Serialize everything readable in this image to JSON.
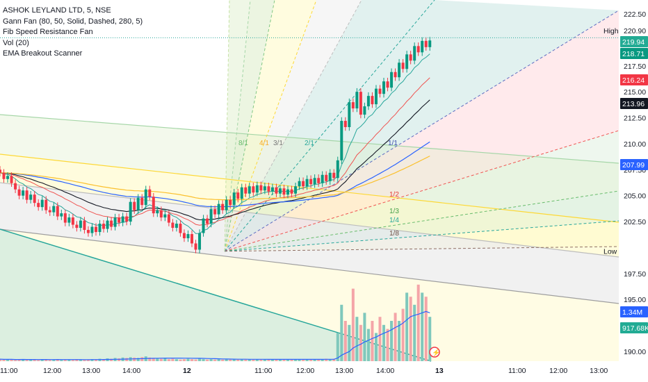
{
  "legend": {
    "title": "ASHOK LEYLAND LTD, 5, NSE",
    "indicators": [
      "Gann Fan (80, 50, Solid, Dashed, 280, 5)",
      "Fib Speed Resistance Fan",
      "Vol (20)",
      "EMA Breakout Scanner"
    ]
  },
  "chart_data": {
    "type": "candlestick",
    "symbol": "ASHOK LEYLAND LTD",
    "interval": "5",
    "exchange": "NSE",
    "ylim": [
      189.5,
      223.8
    ],
    "y_ticks": [
      "222.50",
      "220.90",
      "217.50",
      "215.00",
      "212.50",
      "210.00",
      "207.50",
      "205.00",
      "202.50",
      "197.50",
      "195.00",
      "190.00"
    ],
    "x_ticks": [
      "11:00",
      "12:00",
      "13:00",
      "14:00",
      "12",
      "11:00",
      "12:00",
      "13:00",
      "14:00",
      "13",
      "11:00",
      "12:00",
      "13:00"
    ],
    "price_labels": [
      {
        "text": "High",
        "value": 220.9
      },
      {
        "text": "Low",
        "value": 199.65
      }
    ],
    "badges": [
      {
        "text": "219.94",
        "color": "#22ab94"
      },
      {
        "text": "218.71",
        "color": "#089981"
      },
      {
        "text": "216.24",
        "color": "#f23645"
      },
      {
        "text": "213.96",
        "color": "#131722"
      },
      {
        "text": "207.99",
        "color": "#2962ff"
      },
      {
        "text": "1.34M",
        "color": "#2962ff"
      },
      {
        "text": "917.68K",
        "color": "#22ab94"
      }
    ],
    "fan_labels": [
      "8/1",
      "4/1",
      "3/1",
      "2/1",
      "1/1",
      "1/2",
      "1/3",
      "1/4",
      "1/8"
    ],
    "gann_fan": {
      "origin": {
        "time": "Day12 ~10:30",
        "price": 199.65
      },
      "ratios": [
        "8/1",
        "4/1",
        "3/1",
        "2/1",
        "1/1",
        "1/2",
        "1/3",
        "1/4",
        "1/8"
      ]
    },
    "candles": [
      {
        "o": 207.5,
        "c": 207.2
      },
      {
        "o": 207.2,
        "c": 206.6
      },
      {
        "o": 206.6,
        "c": 206.9
      },
      {
        "o": 206.9,
        "c": 206.2
      },
      {
        "o": 206.2,
        "c": 205.6
      },
      {
        "o": 205.6,
        "c": 205.0
      },
      {
        "o": 205.0,
        "c": 205.5
      },
      {
        "o": 205.5,
        "c": 204.6
      },
      {
        "o": 204.6,
        "c": 205.1
      },
      {
        "o": 205.1,
        "c": 204.3
      },
      {
        "o": 204.3,
        "c": 203.9
      },
      {
        "o": 203.9,
        "c": 204.6
      },
      {
        "o": 204.6,
        "c": 203.6
      },
      {
        "o": 203.6,
        "c": 203.4
      },
      {
        "o": 203.4,
        "c": 204.0
      },
      {
        "o": 204.0,
        "c": 203.0
      },
      {
        "o": 203.0,
        "c": 203.3
      },
      {
        "o": 203.3,
        "c": 202.4
      },
      {
        "o": 202.4,
        "c": 202.9
      },
      {
        "o": 202.9,
        "c": 202.2
      },
      {
        "o": 202.2,
        "c": 201.9
      },
      {
        "o": 201.9,
        "c": 202.6
      },
      {
        "o": 202.6,
        "c": 201.7
      },
      {
        "o": 201.7,
        "c": 201.4
      },
      {
        "o": 201.4,
        "c": 202.0
      },
      {
        "o": 202.0,
        "c": 201.5
      },
      {
        "o": 201.5,
        "c": 202.3
      },
      {
        "o": 202.3,
        "c": 201.8
      },
      {
        "o": 201.8,
        "c": 202.6
      },
      {
        "o": 202.6,
        "c": 202.0
      },
      {
        "o": 202.0,
        "c": 202.9
      },
      {
        "o": 202.9,
        "c": 202.4
      },
      {
        "o": 202.4,
        "c": 203.0
      },
      {
        "o": 203.0,
        "c": 202.5
      },
      {
        "o": 202.5,
        "c": 204.4
      },
      {
        "o": 204.4,
        "c": 203.6
      },
      {
        "o": 203.6,
        "c": 204.8
      },
      {
        "o": 204.8,
        "c": 204.1
      },
      {
        "o": 204.1,
        "c": 205.6
      },
      {
        "o": 205.6,
        "c": 204.9
      },
      {
        "o": 204.9,
        "c": 203.3
      },
      {
        "o": 203.3,
        "c": 203.6
      },
      {
        "o": 203.6,
        "c": 202.9
      },
      {
        "o": 202.9,
        "c": 203.2
      },
      {
        "o": 203.2,
        "c": 202.4
      },
      {
        "o": 202.4,
        "c": 201.9
      },
      {
        "o": 201.9,
        "c": 202.3
      },
      {
        "o": 202.3,
        "c": 201.4
      },
      {
        "o": 201.4,
        "c": 200.9
      },
      {
        "o": 200.9,
        "c": 201.3
      },
      {
        "o": 201.3,
        "c": 200.4
      },
      {
        "o": 200.4,
        "c": 199.8
      },
      {
        "o": 199.8,
        "c": 201.4
      },
      {
        "o": 201.4,
        "c": 202.8
      },
      {
        "o": 202.8,
        "c": 202.3
      },
      {
        "o": 202.3,
        "c": 203.7
      },
      {
        "o": 203.7,
        "c": 203.2
      },
      {
        "o": 203.2,
        "c": 204.2
      },
      {
        "o": 204.2,
        "c": 203.6
      },
      {
        "o": 203.6,
        "c": 204.6
      },
      {
        "o": 204.6,
        "c": 204.1
      },
      {
        "o": 204.1,
        "c": 205.3
      },
      {
        "o": 205.3,
        "c": 204.7
      },
      {
        "o": 204.7,
        "c": 205.8
      },
      {
        "o": 205.8,
        "c": 205.2
      },
      {
        "o": 205.2,
        "c": 205.9
      },
      {
        "o": 205.9,
        "c": 205.3
      },
      {
        "o": 205.3,
        "c": 206.0
      },
      {
        "o": 206.0,
        "c": 205.5
      },
      {
        "o": 205.5,
        "c": 205.9
      },
      {
        "o": 205.9,
        "c": 205.4
      },
      {
        "o": 205.4,
        "c": 205.8
      },
      {
        "o": 205.8,
        "c": 205.2
      },
      {
        "o": 205.2,
        "c": 205.7
      },
      {
        "o": 205.7,
        "c": 205.1
      },
      {
        "o": 205.1,
        "c": 205.6
      },
      {
        "o": 205.6,
        "c": 205.2
      },
      {
        "o": 205.2,
        "c": 205.9
      },
      {
        "o": 205.9,
        "c": 206.4
      },
      {
        "o": 206.4,
        "c": 205.9
      },
      {
        "o": 205.9,
        "c": 206.6
      },
      {
        "o": 206.6,
        "c": 206.1
      },
      {
        "o": 206.1,
        "c": 206.7
      },
      {
        "o": 206.7,
        "c": 206.2
      },
      {
        "o": 206.2,
        "c": 207.0
      },
      {
        "o": 207.0,
        "c": 206.4
      },
      {
        "o": 206.4,
        "c": 207.2
      },
      {
        "o": 207.2,
        "c": 206.7
      },
      {
        "o": 206.7,
        "c": 208.4
      },
      {
        "o": 208.4,
        "c": 212.2
      },
      {
        "o": 212.2,
        "c": 211.6
      },
      {
        "o": 211.6,
        "c": 214.0
      },
      {
        "o": 214.0,
        "c": 213.4
      },
      {
        "o": 213.4,
        "c": 215.0
      },
      {
        "o": 215.0,
        "c": 212.8
      },
      {
        "o": 212.8,
        "c": 213.6
      },
      {
        "o": 213.6,
        "c": 214.6
      },
      {
        "o": 214.6,
        "c": 213.8
      },
      {
        "o": 213.8,
        "c": 215.3
      },
      {
        "o": 215.3,
        "c": 214.8
      },
      {
        "o": 214.8,
        "c": 216.0
      },
      {
        "o": 216.0,
        "c": 215.4
      },
      {
        "o": 215.4,
        "c": 216.9
      },
      {
        "o": 216.9,
        "c": 216.4
      },
      {
        "o": 216.4,
        "c": 217.8
      },
      {
        "o": 217.8,
        "c": 217.2
      },
      {
        "o": 217.2,
        "c": 218.6
      },
      {
        "o": 218.6,
        "c": 218.0
      },
      {
        "o": 218.0,
        "c": 219.4
      },
      {
        "o": 219.4,
        "c": 218.8
      },
      {
        "o": 218.8,
        "c": 219.9
      },
      {
        "o": 219.9,
        "c": 219.3
      },
      {
        "o": 219.3,
        "c": 219.94
      }
    ],
    "volume_series": [
      0.05,
      0.04,
      0.05,
      0.04,
      0.03,
      0.04,
      0.05,
      0.03,
      0.04,
      0.04,
      0.03,
      0.05,
      0.04,
      0.03,
      0.04,
      0.05,
      0.03,
      0.04,
      0.04,
      0.03,
      0.05,
      0.04,
      0.03,
      0.04,
      0.05,
      0.04,
      0.06,
      0.05,
      0.07,
      0.06,
      0.08,
      0.07,
      0.09,
      0.08,
      0.1,
      0.09,
      0.08,
      0.1,
      0.12,
      0.09,
      0.08,
      0.07,
      0.06,
      0.07,
      0.05,
      0.06,
      0.05,
      0.04,
      0.05,
      0.06,
      0.05,
      0.04,
      0.06,
      0.05,
      0.04,
      0.05,
      0.04,
      0.05,
      0.04,
      0.05,
      0.04,
      0.05,
      0.04,
      0.05,
      0.04,
      0.05,
      0.04,
      0.05,
      0.04,
      0.05,
      0.04,
      0.05,
      0.04,
      0.05,
      0.04,
      0.05,
      0.04,
      0.05,
      0.04,
      0.05,
      0.04,
      0.05,
      0.04,
      0.05,
      0.05,
      0.06,
      0.05,
      0.06,
      0.7,
      1.4,
      1.0,
      0.9,
      1.8,
      1.1,
      0.9,
      1.2,
      0.8,
      1.0,
      0.7,
      1.1,
      0.9,
      0.8,
      1.0,
      1.2,
      1.0,
      1.3,
      1.7,
      1.6,
      1.4,
      1.9,
      1.7,
      1.6,
      1.1
    ],
    "vol_unit": "M"
  }
}
